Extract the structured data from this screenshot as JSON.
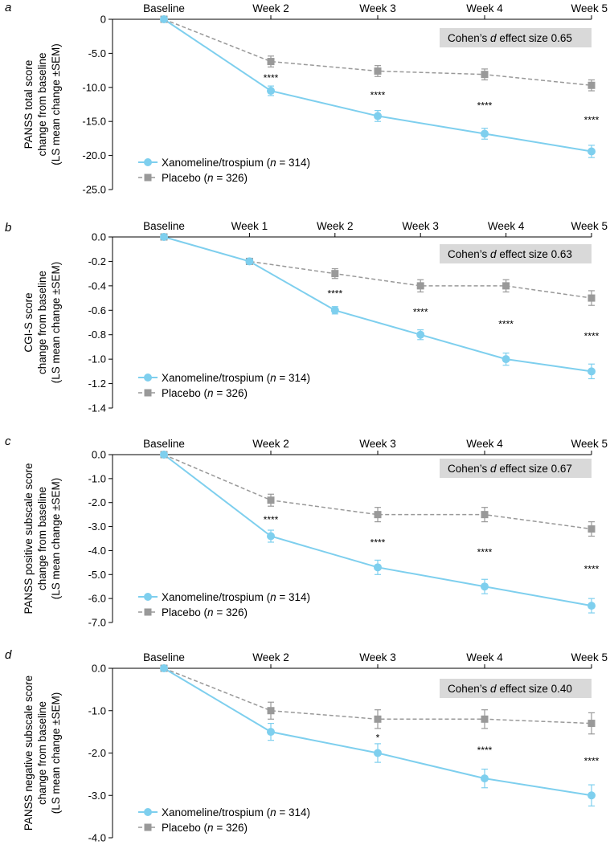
{
  "chart_data": [
    {
      "panel": "a",
      "type": "line",
      "categories": [
        "Baseline",
        "Week 2",
        "Week 3",
        "Week 4",
        "Week 5"
      ],
      "ylabel": [
        "PANSS total score",
        "change from baseline",
        "(LS mean change ±SEM)"
      ],
      "ylim": [
        -25,
        0
      ],
      "yticks": [
        0,
        -5,
        -10,
        -15,
        -20,
        -25
      ],
      "ytick_labels": [
        "0",
        "-5.0",
        "-10.0",
        "-15.0",
        "-20.0",
        "-25.0"
      ],
      "effect_box": {
        "prefix": "Cohen’s ",
        "d": "d",
        "suffix": " effect size 0.65"
      },
      "series": [
        {
          "name": "Xanomeline/trospium",
          "n_label": "314",
          "values": [
            0,
            -10.5,
            -14.2,
            -16.8,
            -19.4
          ],
          "errors": [
            0,
            0.7,
            0.8,
            0.8,
            0.9
          ]
        },
        {
          "name": "Placebo",
          "n_label": "326",
          "values": [
            0,
            -6.2,
            -7.6,
            -8.1,
            -9.7
          ],
          "errors": [
            0,
            0.8,
            0.8,
            0.8,
            0.8
          ]
        }
      ],
      "significance": [
        "",
        "****",
        "****",
        "****",
        "****"
      ]
    },
    {
      "panel": "b",
      "type": "line",
      "categories": [
        "Baseline",
        "Week 1",
        "Week 2",
        "Week 3",
        "Week 4",
        "Week 5"
      ],
      "ylabel": [
        "CGI-S score",
        "change from baseline",
        "(LS mean change ±SEM)"
      ],
      "ylim": [
        -1.4,
        0
      ],
      "yticks": [
        0,
        -0.2,
        -0.4,
        -0.6,
        -0.8,
        -1.0,
        -1.2,
        -1.4
      ],
      "ytick_labels": [
        "0.0",
        "-0.2",
        "-0.4",
        "-0.6",
        "-0.8",
        "-1.0",
        "-1.2",
        "-1.4"
      ],
      "effect_box": {
        "prefix": "Cohen’s ",
        "d": "d",
        "suffix": " effect size 0.63"
      },
      "series": [
        {
          "name": "Xanomeline/trospium",
          "n_label": "314",
          "values": [
            0,
            -0.2,
            -0.6,
            -0.8,
            -1.0,
            -1.1
          ],
          "errors": [
            0,
            0.02,
            0.03,
            0.04,
            0.05,
            0.06
          ]
        },
        {
          "name": "Placebo",
          "n_label": "326",
          "values": [
            0,
            -0.2,
            -0.3,
            -0.4,
            -0.4,
            -0.5
          ],
          "errors": [
            0,
            0.02,
            0.04,
            0.05,
            0.05,
            0.06
          ]
        }
      ],
      "significance": [
        "",
        "",
        "****",
        "****",
        "****",
        "****"
      ]
    },
    {
      "panel": "c",
      "type": "line",
      "categories": [
        "Baseline",
        "Week 2",
        "Week 3",
        "Week 4",
        "Week 5"
      ],
      "ylabel": [
        "PANSS positive subscale score",
        "change from baseline",
        "(LS mean change ±SEM)"
      ],
      "ylim": [
        -7,
        0
      ],
      "yticks": [
        0,
        -1,
        -2,
        -3,
        -4,
        -5,
        -6,
        -7
      ],
      "ytick_labels": [
        "0.0",
        "-1.0",
        "-2.0",
        "-3.0",
        "-4.0",
        "-5.0",
        "-6.0",
        "-7.0"
      ],
      "effect_box": {
        "prefix": "Cohen’s ",
        "d": "d",
        "suffix": " effect size 0.67"
      },
      "series": [
        {
          "name": "Xanomeline/trospium",
          "n_label": "314",
          "values": [
            0,
            -3.4,
            -4.7,
            -5.5,
            -6.3
          ],
          "errors": [
            0,
            0.25,
            0.3,
            0.3,
            0.3
          ]
        },
        {
          "name": "Placebo",
          "n_label": "326",
          "values": [
            0,
            -1.9,
            -2.5,
            -2.5,
            -3.1
          ],
          "errors": [
            0,
            0.25,
            0.3,
            0.3,
            0.3
          ]
        }
      ],
      "significance": [
        "",
        "****",
        "****",
        "****",
        "****"
      ]
    },
    {
      "panel": "d",
      "type": "line",
      "categories": [
        "Baseline",
        "Week 2",
        "Week 3",
        "Week 4",
        "Week 5"
      ],
      "ylabel": [
        "PANSS negative subscale score",
        "change from baseline",
        "(LS mean change ±SEM)"
      ],
      "ylim": [
        -4,
        0
      ],
      "yticks": [
        0,
        -1,
        -2,
        -3,
        -4
      ],
      "ytick_labels": [
        "0.0",
        "-1.0",
        "-2.0",
        "-3.0",
        "-4.0"
      ],
      "effect_box": {
        "prefix": "Cohen’s ",
        "d": "d",
        "suffix": " effect size 0.40"
      },
      "series": [
        {
          "name": "Xanomeline/trospium",
          "n_label": "314",
          "values": [
            0,
            -1.5,
            -2.0,
            -2.6,
            -3.0
          ],
          "errors": [
            0,
            0.2,
            0.22,
            0.22,
            0.25
          ]
        },
        {
          "name": "Placebo",
          "n_label": "326",
          "values": [
            0,
            -1.0,
            -1.2,
            -1.2,
            -1.3
          ],
          "errors": [
            0,
            0.2,
            0.22,
            0.22,
            0.25
          ]
        }
      ],
      "significance": [
        "",
        "",
        "*",
        "****",
        "****"
      ]
    }
  ],
  "colors": {
    "treatment": "#7ecfee",
    "placebo": "#999999",
    "box": "#d9d9d9",
    "axis": "#000000"
  },
  "legend": {
    "n_prefix": "n",
    "n_equals": " = ",
    "open_paren": " (",
    "close_paren": ")"
  }
}
